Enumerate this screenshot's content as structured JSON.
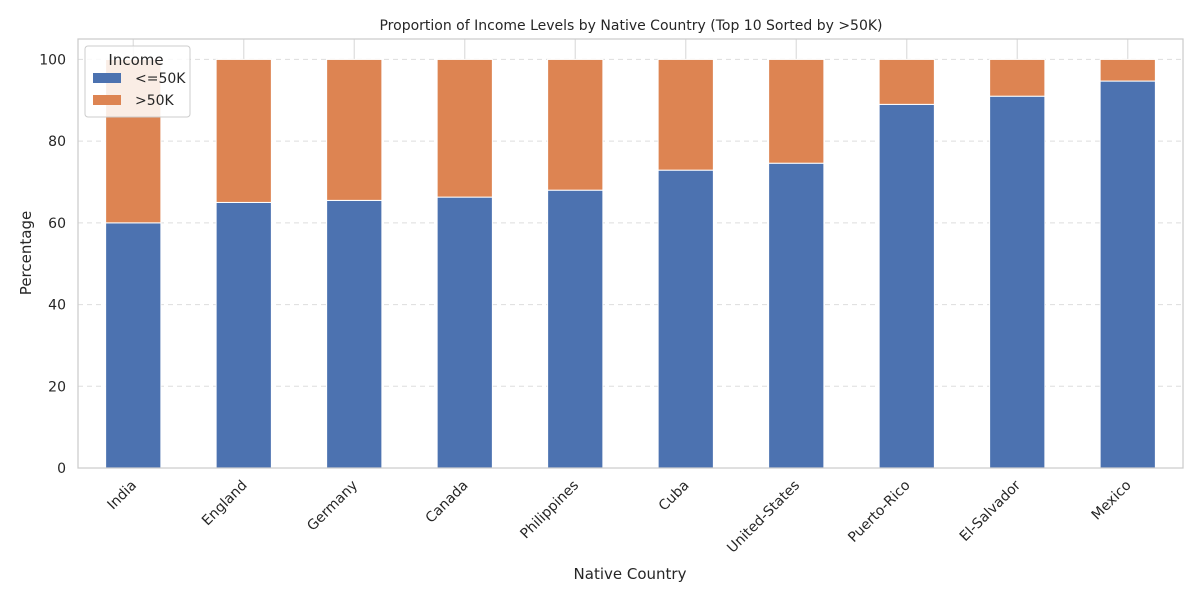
{
  "chart_data": {
    "type": "bar",
    "stacked": true,
    "title": "Proportion of Income Levels by Native Country (Top 10 Sorted by >50K)",
    "xlabel": "Native Country",
    "ylabel": "Percentage",
    "ylim": [
      0,
      105
    ],
    "yticks": [
      0,
      20,
      40,
      60,
      80,
      100
    ],
    "grid": true,
    "legend": {
      "title": "Income",
      "position": "top-left"
    },
    "categories": [
      "India",
      "England",
      "Germany",
      "Canada",
      "Philippines",
      "Cuba",
      "United-States",
      "Puerto-Rico",
      "El-Salvador",
      "Mexico"
    ],
    "series": [
      {
        "name": "<=50K",
        "color": "#4c72b0",
        "values": [
          60.0,
          65.0,
          65.5,
          66.3,
          68.0,
          72.9,
          74.6,
          89.0,
          91.0,
          94.7
        ]
      },
      {
        "name": ">50K",
        "color": "#dd8452",
        "values": [
          40.0,
          35.0,
          34.5,
          33.7,
          32.0,
          27.1,
          25.4,
          11.0,
          9.0,
          5.3
        ]
      }
    ]
  }
}
